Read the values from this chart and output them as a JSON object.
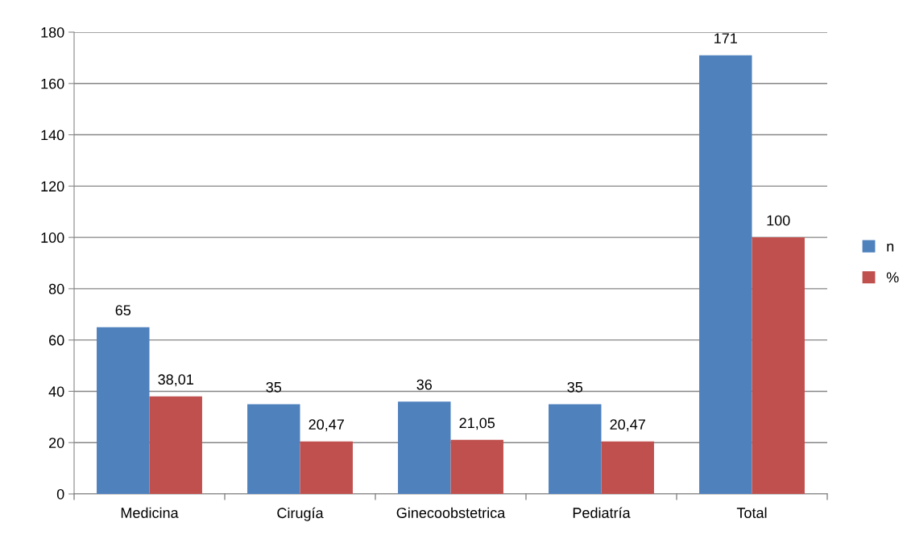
{
  "chart_data": {
    "type": "bar",
    "categories": [
      "Medicina",
      "Cirugía",
      "Ginecoobstetrica",
      "Pediatría",
      "Total"
    ],
    "series": [
      {
        "name": "n",
        "color": "#4f81bd",
        "values": [
          65,
          35,
          36,
          35,
          171
        ],
        "value_labels": [
          "65",
          "35",
          "36",
          "35",
          "171"
        ]
      },
      {
        "name": "%",
        "color": "#c0504d",
        "values": [
          38.01,
          20.47,
          21.05,
          20.47,
          100
        ],
        "value_labels": [
          "38,01",
          "20,47",
          "21,05",
          "20,47",
          "100"
        ]
      }
    ],
    "ylim": [
      0,
      180
    ],
    "yticks": [
      0,
      20,
      40,
      60,
      80,
      100,
      120,
      140,
      160,
      180
    ],
    "grid": "y",
    "legend": "right"
  }
}
